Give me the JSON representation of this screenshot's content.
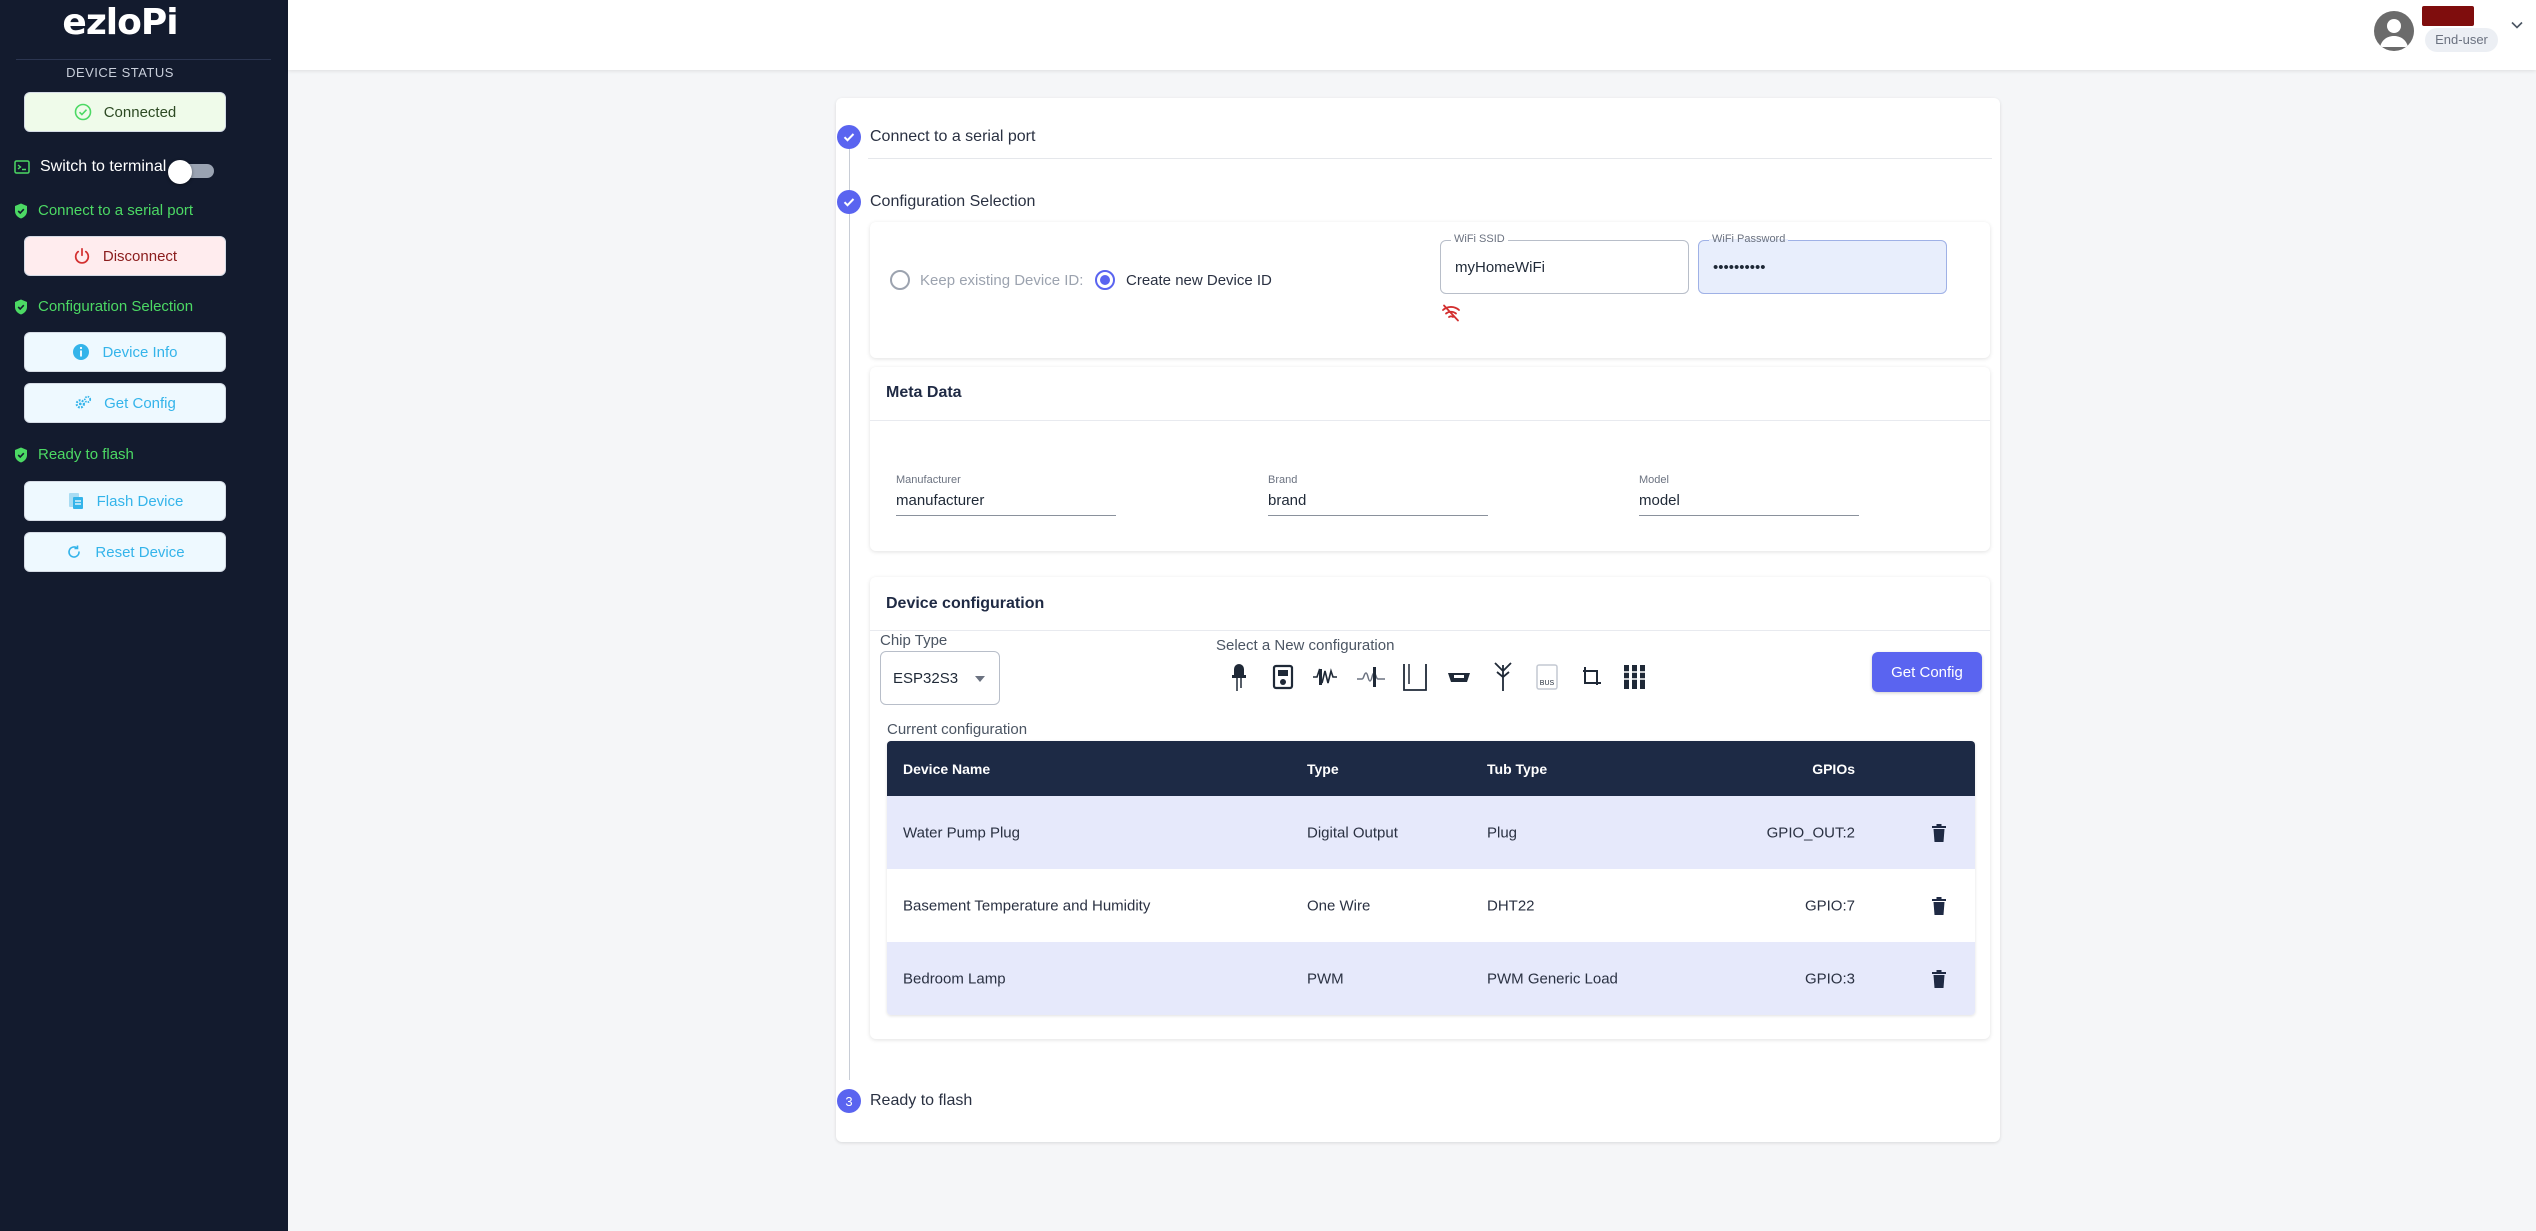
{
  "sidebar": {
    "logo": "ezloPi",
    "device_status_label": "DEVICE STATUS",
    "connected_label": "Connected",
    "terminal_label": "Switch to terminal",
    "terminal_on": false,
    "step_connect": "Connect to a serial port",
    "disconnect_label": "Disconnect",
    "step_config": "Configuration Selection",
    "device_info_label": "Device Info",
    "get_config_label": "Get Config",
    "step_ready": "Ready to flash",
    "flash_label": "Flash Device",
    "reset_label": "Reset Device"
  },
  "header": {
    "role": "End-user"
  },
  "steps": {
    "step1": "Connect to a serial port",
    "step2": "Configuration Selection",
    "step3_number": "3",
    "step3": "Ready to flash"
  },
  "config": {
    "keep_id_label": "Keep existing Device ID:",
    "new_id_label": "Create new Device ID",
    "selected": "new",
    "wifi_ssid_label": "WiFi SSID",
    "wifi_ssid": "myHomeWiFi",
    "wifi_password_label": "WiFi Password",
    "wifi_password": "••••••••••"
  },
  "meta": {
    "title": "Meta Data",
    "manufacturer_label": "Manufacturer",
    "manufacturer": "manufacturer",
    "brand_label": "Brand",
    "brand": "brand",
    "model_label": "Model",
    "model": "model"
  },
  "device_config": {
    "title": "Device configuration",
    "chip_type_label": "Chip Type",
    "chip_type": "ESP32S3",
    "select_new_label": "Select a New configuration",
    "get_config_button": "Get Config",
    "current_config_label": "Current configuration",
    "icons": [
      "led-icon",
      "relay-icon",
      "digital-input-icon",
      "analog-input-icon",
      "pwm-icon",
      "onewire-icon",
      "antenna-icon",
      "i2c-icon",
      "spi-icon",
      "sensor-array-icon"
    ],
    "columns": [
      "Device Name",
      "Type",
      "Tub Type",
      "GPIOs"
    ],
    "rows": [
      {
        "name": "Water Pump Plug",
        "type": "Digital Output",
        "subtype": "Plug",
        "gpio": "GPIO_OUT:2"
      },
      {
        "name": "Basement Temperature and Humidity",
        "type": "One Wire",
        "subtype": "DHT22",
        "gpio": "GPIO:7"
      },
      {
        "name": "Bedroom Lamp",
        "type": "PWM",
        "subtype": "PWM Generic Load",
        "gpio": "GPIO:3"
      }
    ]
  },
  "colors": {
    "sidebar_bg": "#131b2e",
    "accent": "#5a64f0",
    "success": "#4cd964",
    "table_header": "#1d2a45",
    "row_highlight": "#e6e9fb"
  }
}
